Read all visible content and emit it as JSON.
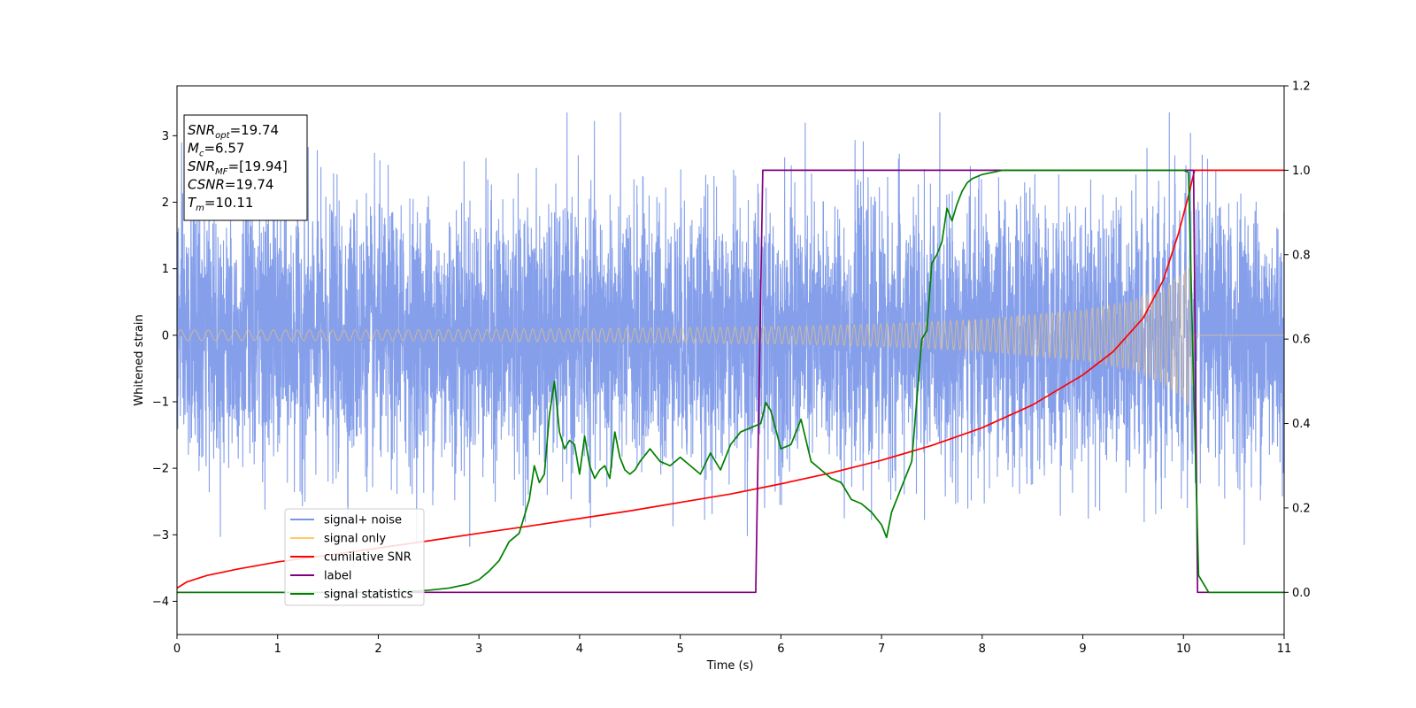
{
  "chart_data": {
    "type": "line",
    "xlabel": "Time (s)",
    "ylabel": "Whitened strain",
    "xlim": [
      0,
      11
    ],
    "ylim": [
      -4.5,
      3.75
    ],
    "y2lim": [
      -0.1,
      1.2
    ],
    "x_ticks": [
      0,
      1,
      2,
      3,
      4,
      5,
      6,
      7,
      8,
      9,
      10,
      11
    ],
    "y_ticks": [
      -4,
      -3,
      -2,
      -1,
      0,
      1,
      2,
      3
    ],
    "y_tick_labels": [
      "−4",
      "−3",
      "−2",
      "−1",
      "0",
      "1",
      "2",
      "3"
    ],
    "y2_ticks": [
      0.0,
      0.2,
      0.4,
      0.6,
      0.8,
      1.0,
      1.2
    ],
    "y2_tick_labels": [
      "0.0",
      "0.2",
      "0.4",
      "0.6",
      "0.8",
      "1.0",
      "1.2"
    ],
    "grid": false,
    "legend_position": "lower-left",
    "annotation": {
      "lines": [
        {
          "main": "SNR",
          "sub": "opt",
          "value": "=19.74"
        },
        {
          "main": "M",
          "sub": "c",
          "value": "=6.57"
        },
        {
          "main": "SNR",
          "sub": "MF",
          "value": "=[19.94]"
        },
        {
          "main": "CSNR",
          "sub": "",
          "value": "=19.74"
        },
        {
          "main": "T",
          "sub": "m",
          "value": "=10.11"
        }
      ]
    },
    "series": [
      {
        "name": "signal+ noise",
        "color": "#7895e8",
        "axis": "left",
        "kind": "noise",
        "x_range": [
          0,
          11
        ],
        "merger_time": 10.11,
        "noise_sigma": 0.95,
        "peak_amplitude": 3.35
      },
      {
        "name": "signal only",
        "color": "#ffc966",
        "axis": "left",
        "kind": "chirp",
        "envelope": {
          "x": [
            0,
            2,
            4,
            6,
            7,
            8,
            9,
            9.5,
            9.8,
            10.0,
            10.08,
            10.11
          ],
          "y": [
            0.08,
            0.08,
            0.1,
            0.13,
            0.17,
            0.24,
            0.38,
            0.52,
            0.72,
            0.95,
            1.15,
            0
          ]
        }
      },
      {
        "name": "cumilative SNR",
        "color": "#ff0000",
        "axis": "right",
        "x": [
          0,
          0.1,
          0.3,
          0.6,
          1,
          1.5,
          2,
          2.5,
          3,
          3.5,
          4,
          4.5,
          5,
          5.5,
          6,
          6.5,
          7,
          7.5,
          8,
          8.5,
          9,
          9.3,
          9.6,
          9.8,
          9.95,
          10.05,
          10.11,
          10.2,
          11
        ],
        "y": [
          0.01,
          0.025,
          0.04,
          0.055,
          0.072,
          0.088,
          0.105,
          0.122,
          0.14,
          0.157,
          0.175,
          0.193,
          0.213,
          0.233,
          0.257,
          0.283,
          0.313,
          0.348,
          0.39,
          0.444,
          0.515,
          0.57,
          0.65,
          0.74,
          0.85,
          0.94,
          1.0,
          1.0,
          1.0
        ]
      },
      {
        "name": "label",
        "color": "#800080",
        "axis": "right",
        "x": [
          0,
          5.75,
          5.82,
          10.1,
          10.14,
          11
        ],
        "y": [
          0,
          0,
          1,
          1,
          0,
          0
        ]
      },
      {
        "name": "signal statistics",
        "color": "#008000",
        "axis": "right",
        "x": [
          0,
          0.5,
          1,
          1.5,
          2,
          2.3,
          2.5,
          2.7,
          2.9,
          3.0,
          3.1,
          3.2,
          3.3,
          3.4,
          3.45,
          3.5,
          3.55,
          3.6,
          3.65,
          3.7,
          3.75,
          3.8,
          3.85,
          3.9,
          3.95,
          4.0,
          4.05,
          4.1,
          4.15,
          4.2,
          4.25,
          4.3,
          4.35,
          4.4,
          4.45,
          4.5,
          4.55,
          4.6,
          4.7,
          4.8,
          4.9,
          5.0,
          5.1,
          5.2,
          5.3,
          5.4,
          5.5,
          5.6,
          5.7,
          5.8,
          5.85,
          5.9,
          6.0,
          6.1,
          6.2,
          6.3,
          6.4,
          6.5,
          6.6,
          6.7,
          6.8,
          6.9,
          7.0,
          7.05,
          7.1,
          7.2,
          7.3,
          7.4,
          7.45,
          7.5,
          7.55,
          7.6,
          7.65,
          7.7,
          7.75,
          7.8,
          7.85,
          7.9,
          8.0,
          8.1,
          8.2,
          8.5,
          9.0,
          9.5,
          10.0,
          10.05,
          10.1,
          10.15,
          10.25,
          11
        ],
        "y": [
          0,
          0,
          0,
          0,
          0,
          0.002,
          0.005,
          0.01,
          0.02,
          0.03,
          0.05,
          0.075,
          0.12,
          0.14,
          0.18,
          0.22,
          0.3,
          0.26,
          0.28,
          0.42,
          0.5,
          0.38,
          0.34,
          0.36,
          0.35,
          0.28,
          0.37,
          0.3,
          0.27,
          0.29,
          0.3,
          0.27,
          0.38,
          0.32,
          0.29,
          0.28,
          0.29,
          0.31,
          0.34,
          0.31,
          0.3,
          0.32,
          0.3,
          0.28,
          0.33,
          0.29,
          0.35,
          0.38,
          0.39,
          0.4,
          0.45,
          0.43,
          0.34,
          0.35,
          0.41,
          0.31,
          0.29,
          0.27,
          0.26,
          0.22,
          0.21,
          0.19,
          0.16,
          0.13,
          0.19,
          0.25,
          0.31,
          0.6,
          0.62,
          0.78,
          0.8,
          0.83,
          0.91,
          0.88,
          0.92,
          0.95,
          0.97,
          0.98,
          0.99,
          0.995,
          1.0,
          1.0,
          1.0,
          1.0,
          1.0,
          0.995,
          0.5,
          0.04,
          0.0,
          0.0
        ]
      }
    ]
  }
}
